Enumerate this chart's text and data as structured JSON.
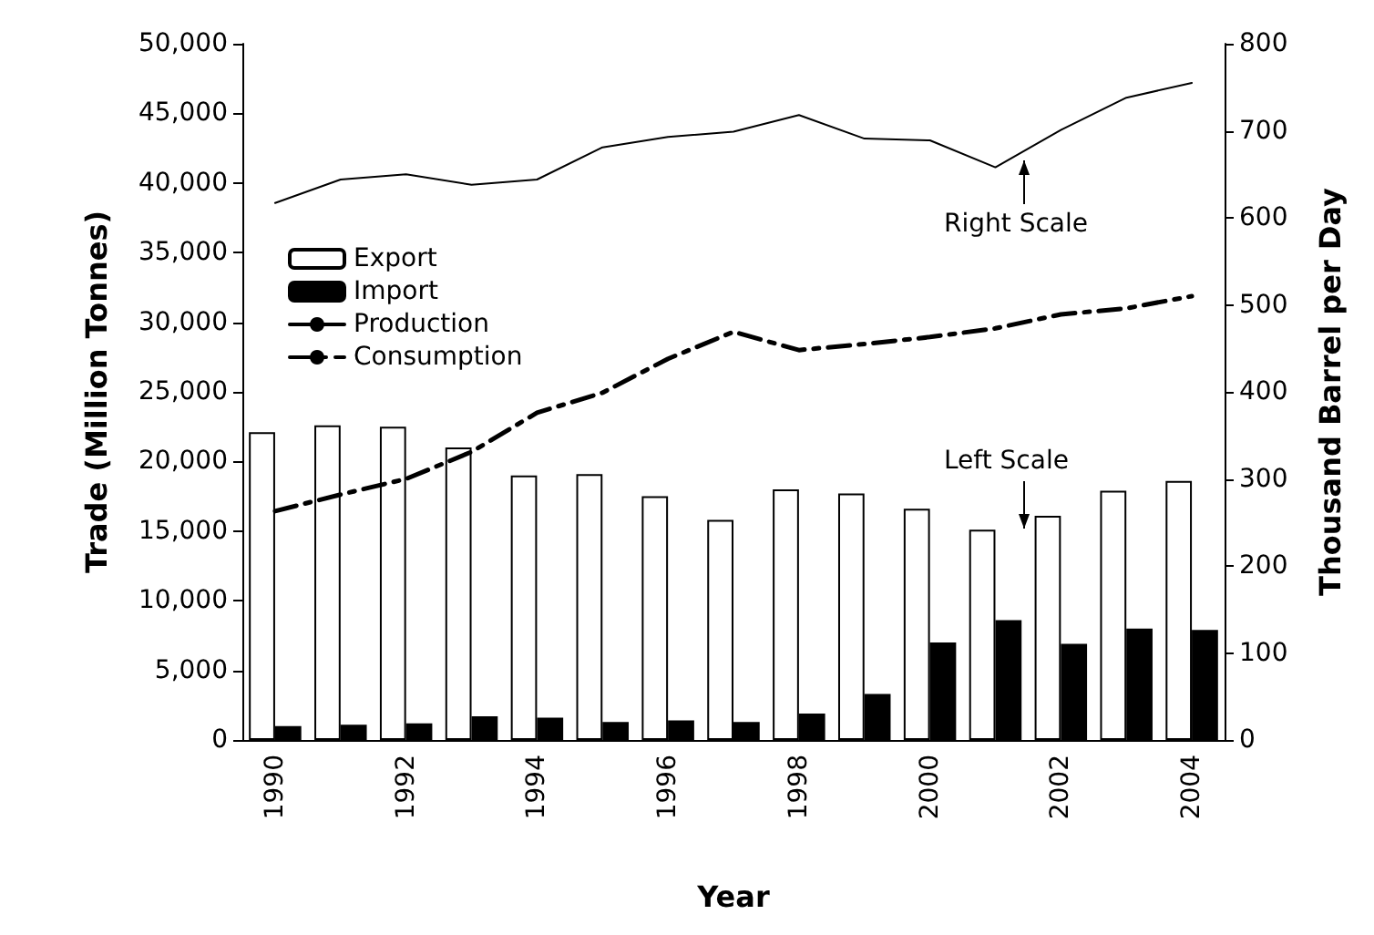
{
  "chart_data": {
    "type": "bar",
    "xlabel": "Year",
    "ylabel": "Trade (Million Tonnes)",
    "y2label": "Thousand Barrel per Day",
    "categories": [
      "1990",
      null,
      "1992",
      null,
      "1994",
      null,
      "1996",
      null,
      "1998",
      null,
      "2000",
      null,
      "2002",
      null,
      "2004"
    ],
    "series": [
      {
        "name": "Export",
        "color": "#ffffff",
        "values": [
          22100,
          22600,
          22500,
          21000,
          19000,
          19100,
          17500,
          15800,
          18000,
          17700,
          16600,
          15100,
          16100,
          17900,
          18600
        ]
      },
      {
        "name": "Import",
        "color": "#000000",
        "values": [
          1000,
          1100,
          1200,
          1700,
          1600,
          1300,
          1400,
          1300,
          1900,
          3300,
          7000,
          8600,
          6900,
          8000,
          7900
        ]
      },
      {
        "name": "Production",
        "type": "line",
        "axis": "y2",
        "color": "#000000",
        "line_style": "solid",
        "values": [
          617,
          644,
          650,
          638,
          644,
          681,
          693,
          699,
          718,
          691,
          689,
          658,
          701,
          738,
          755
        ]
      },
      {
        "name": "Consumption",
        "type": "line",
        "axis": "y2",
        "color": "#000000",
        "line_style": "dashed",
        "values": [
          263,
          282,
          300,
          331,
          376,
          399,
          438,
          469,
          448,
          455,
          463,
          473,
          489,
          496,
          510
        ]
      }
    ],
    "ylim": [
      0,
      50000
    ],
    "yticks": [
      {
        "value": 0,
        "label": "0"
      },
      {
        "value": 5000,
        "label": "5,000"
      },
      {
        "value": 10000,
        "label": "10,000"
      },
      {
        "value": 15000,
        "label": "15,000"
      },
      {
        "value": 20000,
        "label": "20,000"
      },
      {
        "value": 25000,
        "label": "25,000"
      },
      {
        "value": 30000,
        "label": "30,000"
      },
      {
        "value": 35000,
        "label": "35,000"
      },
      {
        "value": 40000,
        "label": "40,000"
      },
      {
        "value": 45000,
        "label": "45,000"
      },
      {
        "value": 50000,
        "label": "50,000"
      }
    ],
    "y2lim": [
      0,
      800
    ],
    "y2ticks": [
      0,
      100,
      200,
      300,
      400,
      500,
      600,
      700,
      800
    ],
    "annotations": [
      "Right Scale",
      "Left Scale"
    ],
    "grid": false,
    "legend": "left",
    "marker": "none"
  }
}
